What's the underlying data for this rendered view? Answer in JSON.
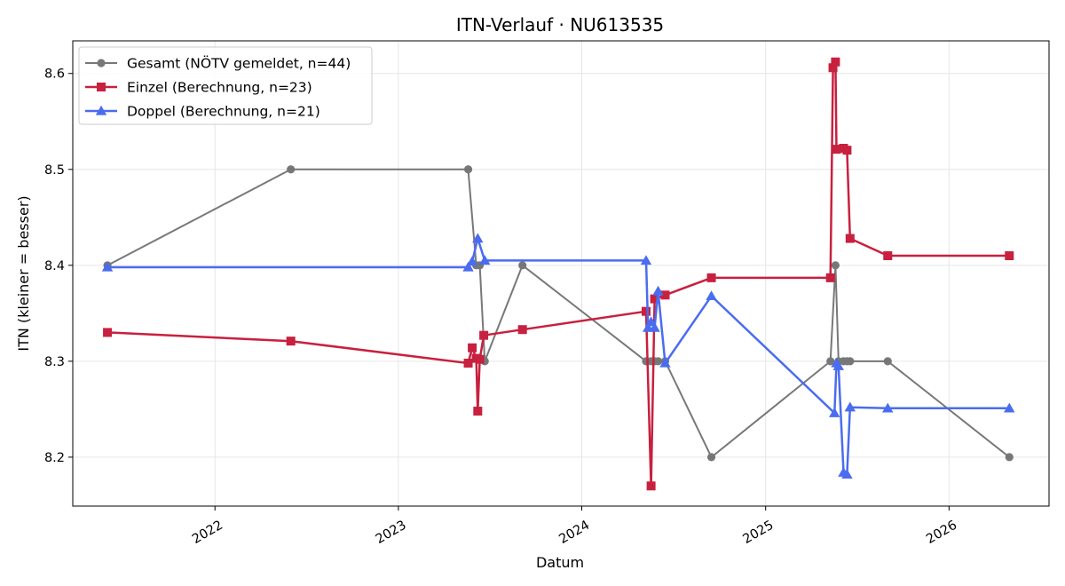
{
  "chart_data": {
    "type": "line",
    "title": "ITN-Verlauf · NU613535",
    "xlabel": "Datum",
    "ylabel": "ITN  (kleiner = besser)",
    "xlim": [
      "2021-03-24",
      "2026-07-19"
    ],
    "ylim": [
      8.149,
      8.634
    ],
    "x_ticks": [
      "2022",
      "2023",
      "2024",
      "2025",
      "2026"
    ],
    "y_ticks": [
      "8.2",
      "8.3",
      "8.4",
      "8.5",
      "8.6"
    ],
    "grid": true,
    "legend_position": "top-left",
    "series": [
      {
        "name": "Gesamt (NÖTV gemeldet, n=44)",
        "color": "#404040",
        "marker": "circle",
        "points": [
          {
            "x": "2021-06-01",
            "y": 8.4
          },
          {
            "x": "2022-06-01",
            "y": 8.5
          },
          {
            "x": "2023-05-20",
            "y": 8.5
          },
          {
            "x": "2023-06-05",
            "y": 8.4
          },
          {
            "x": "2023-06-12",
            "y": 8.4
          },
          {
            "x": "2023-06-22",
            "y": 8.3
          },
          {
            "x": "2023-09-05",
            "y": 8.4
          },
          {
            "x": "2024-05-08",
            "y": 8.3
          },
          {
            "x": "2024-05-18",
            "y": 8.3
          },
          {
            "x": "2024-05-25",
            "y": 8.3
          },
          {
            "x": "2024-06-01",
            "y": 8.3
          },
          {
            "x": "2024-06-15",
            "y": 8.3
          },
          {
            "x": "2024-09-15",
            "y": 8.2
          },
          {
            "x": "2025-05-10",
            "y": 8.3
          },
          {
            "x": "2025-05-20",
            "y": 8.4
          },
          {
            "x": "2025-05-26",
            "y": 8.3
          },
          {
            "x": "2025-06-05",
            "y": 8.3
          },
          {
            "x": "2025-06-12",
            "y": 8.3
          },
          {
            "x": "2025-06-18",
            "y": 8.3
          },
          {
            "x": "2025-09-01",
            "y": 8.3
          },
          {
            "x": "2026-05-01",
            "y": 8.2
          }
        ]
      },
      {
        "name": "Einzel (Berechnung, n=23)",
        "color": "#c8203f",
        "marker": "square",
        "points": [
          {
            "x": "2021-06-01",
            "y": 8.33
          },
          {
            "x": "2022-06-01",
            "y": 8.321
          },
          {
            "x": "2023-05-20",
            "y": 8.298
          },
          {
            "x": "2023-05-28",
            "y": 8.314
          },
          {
            "x": "2023-06-05",
            "y": 8.303
          },
          {
            "x": "2023-06-08",
            "y": 8.248
          },
          {
            "x": "2023-06-12",
            "y": 8.302
          },
          {
            "x": "2023-06-20",
            "y": 8.327
          },
          {
            "x": "2023-09-05",
            "y": 8.333
          },
          {
            "x": "2024-05-08",
            "y": 8.352
          },
          {
            "x": "2024-05-18",
            "y": 8.17
          },
          {
            "x": "2024-05-25",
            "y": 8.365
          },
          {
            "x": "2024-06-15",
            "y": 8.369
          },
          {
            "x": "2024-09-15",
            "y": 8.387
          },
          {
            "x": "2025-05-10",
            "y": 8.387
          },
          {
            "x": "2025-05-15",
            "y": 8.606
          },
          {
            "x": "2025-05-20",
            "y": 8.612
          },
          {
            "x": "2025-05-22",
            "y": 8.521
          },
          {
            "x": "2025-06-05",
            "y": 8.522
          },
          {
            "x": "2025-06-12",
            "y": 8.52
          },
          {
            "x": "2025-06-18",
            "y": 8.428
          },
          {
            "x": "2025-09-01",
            "y": 8.41
          },
          {
            "x": "2026-05-01",
            "y": 8.41
          }
        ]
      },
      {
        "name": "Doppel (Berechnung, n=21)",
        "color": "#4a6cf0",
        "marker": "triangle",
        "points": [
          {
            "x": "2021-06-01",
            "y": 8.398
          },
          {
            "x": "2023-05-20",
            "y": 8.398
          },
          {
            "x": "2023-05-28",
            "y": 8.404
          },
          {
            "x": "2023-06-08",
            "y": 8.428
          },
          {
            "x": "2023-06-22",
            "y": 8.405
          },
          {
            "x": "2024-05-08",
            "y": 8.405
          },
          {
            "x": "2024-05-12",
            "y": 8.335
          },
          {
            "x": "2024-05-18",
            "y": 8.341
          },
          {
            "x": "2024-05-25",
            "y": 8.335
          },
          {
            "x": "2024-06-01",
            "y": 8.373
          },
          {
            "x": "2024-06-15",
            "y": 8.298
          },
          {
            "x": "2024-09-15",
            "y": 8.368
          },
          {
            "x": "2025-05-18",
            "y": 8.246
          },
          {
            "x": "2025-05-22",
            "y": 8.298
          },
          {
            "x": "2025-05-26",
            "y": 8.295
          },
          {
            "x": "2025-06-05",
            "y": 8.184
          },
          {
            "x": "2025-06-12",
            "y": 8.182
          },
          {
            "x": "2025-06-18",
            "y": 8.252
          },
          {
            "x": "2025-09-01",
            "y": 8.251
          },
          {
            "x": "2026-05-01",
            "y": 8.251
          }
        ]
      }
    ]
  }
}
